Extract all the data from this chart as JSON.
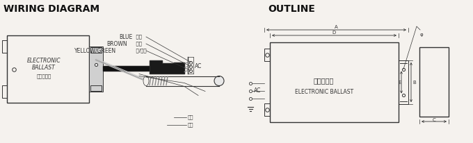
{
  "title_left": "WIRING DIAGRAM",
  "title_right": "OUTLINE",
  "bg_color": "#f5f2ee",
  "text_color": "#333333",
  "label_blue": "BLUE",
  "label_blue_cn": "蓝线",
  "label_brown": "BROWN",
  "label_brown_cn": "棕线",
  "label_yellow_green": "YELLOW/GREEN",
  "label_yg_cn": "黄/绻线",
  "label_electronic": "ELECTRONIC",
  "label_ballast": "BALLAST",
  "label_cn_ballast": "电子镇流器",
  "label_ac": "AC",
  "label_outline_cn": "电子镇流器",
  "label_outline_en": "ELECTRONIC BALLAST",
  "dim_a": "A",
  "dim_b": "B",
  "dim_c": "C",
  "dim_d": "D",
  "dim_e": "E",
  "label_blue2": "蓝线",
  "label_brown2": "棕线"
}
